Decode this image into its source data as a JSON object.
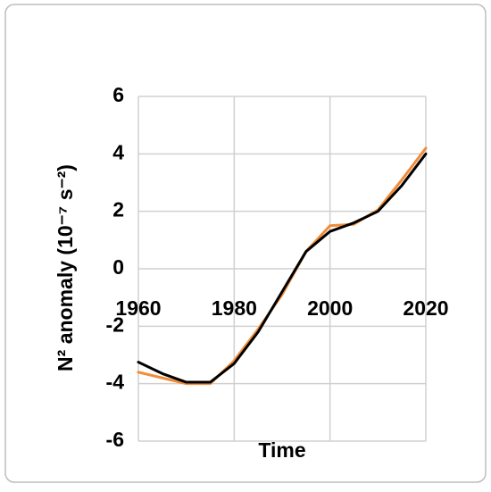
{
  "chart_data": {
    "type": "line",
    "xlabel": "Time",
    "ylabel": "N² anomaly (10⁻⁷ s⁻²)",
    "x": [
      1960,
      1965,
      1970,
      1975,
      1980,
      1985,
      1990,
      1995,
      2000,
      2005,
      2010,
      2015,
      2020
    ],
    "series": [
      {
        "color": "#f28c38",
        "values": [
          -3.6,
          -3.8,
          -4.0,
          -4.0,
          -3.2,
          -2.1,
          -0.9,
          0.6,
          1.5,
          1.55,
          2.05,
          3.1,
          4.2
        ]
      },
      {
        "color": "#000000",
        "values": [
          -3.25,
          -3.65,
          -3.95,
          -3.95,
          -3.3,
          -2.2,
          -0.8,
          0.6,
          1.3,
          1.6,
          2.0,
          2.9,
          4.0
        ]
      }
    ],
    "xlim": [
      1960,
      2020
    ],
    "xticks": [
      1960,
      1980,
      2000,
      2020
    ],
    "ylim": [
      -6,
      6
    ],
    "yticks": [
      -6,
      -4,
      -2,
      0,
      2,
      4,
      6
    ],
    "grid": true
  }
}
